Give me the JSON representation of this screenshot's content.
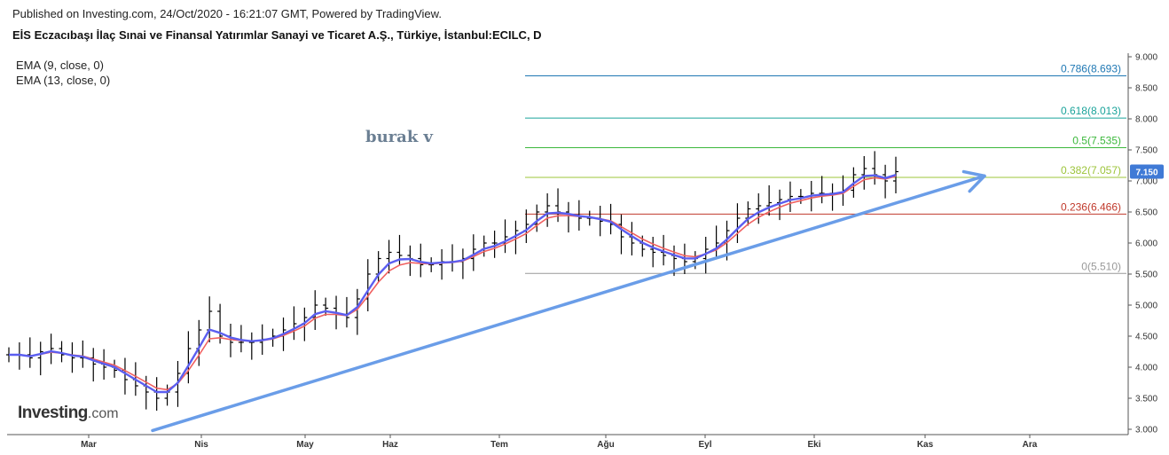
{
  "header": {
    "published": "Published on Investing.com, 24/Oct/2020 - 16:21:07 GMT, Powered by TradingView.",
    "title": "EİS Eczacıbaşı İlaç Sınai ve Finansal Yatırımlar Sanayi ve Ticaret A.Ş., Türkiye, İstanbul:ECILC, D"
  },
  "indicators": [
    "EMA (9, close, 0)",
    "EMA (13, close, 0)"
  ],
  "logo": {
    "bold": "Investing",
    "suffix": ".com"
  },
  "watermark": "burak v",
  "colors": {
    "ema9": "#5b5ef0",
    "ema13": "#f06060",
    "trendline": "#6a9de8",
    "price_bars": "#000000",
    "price_badge": "#3f7ad6"
  },
  "chart_data": {
    "type": "ohlc-bar",
    "y_ticks": [
      "9.000",
      "8.500",
      "8.000",
      "7.500",
      "7.000",
      "6.500",
      "6.000",
      "5.500",
      "5.000",
      "4.500",
      "4.000",
      "3.500",
      "3.000"
    ],
    "ylim": [
      3.0,
      9.0
    ],
    "x_ticks": [
      "Mar",
      "Nis",
      "May",
      "Haz",
      "Tem",
      "Ağu",
      "Eyl",
      "Eki",
      "Kas",
      "Ara"
    ],
    "last_price": "7.150",
    "fib_levels": [
      {
        "label": "0.786(8.693)",
        "value": 8.693,
        "color": "#1f78b4"
      },
      {
        "label": "0.618(8.013)",
        "value": 8.013,
        "color": "#1aa39a"
      },
      {
        "label": "0.5(7.535)",
        "value": 7.535,
        "color": "#3cb83c"
      },
      {
        "label": "0.382(7.057)",
        "value": 7.057,
        "color": "#9cc43a"
      },
      {
        "label": "0.236(6.466)",
        "value": 6.466,
        "color": "#c0392b"
      },
      {
        "label": "0(5.510)",
        "value": 5.51,
        "color": "#999999"
      }
    ],
    "trendline": {
      "from": [
        "Mar",
        3.0
      ],
      "to": [
        "Kas",
        7.1
      ]
    },
    "series": [
      {
        "name": "price",
        "approx_close": [
          4.2,
          4.2,
          4.15,
          4.25,
          4.3,
          4.2,
          4.15,
          4.15,
          4.05,
          4.0,
          3.95,
          3.8,
          3.7,
          3.6,
          3.5,
          3.6,
          3.9,
          4.3,
          4.6,
          4.9,
          4.5,
          4.4,
          4.4,
          4.4,
          4.45,
          4.5,
          4.6,
          4.7,
          4.8,
          5.0,
          4.95,
          4.85,
          4.8,
          5.1,
          5.5,
          5.75,
          5.85,
          5.8,
          5.75,
          5.65,
          5.65,
          5.7,
          5.7,
          5.75,
          5.9,
          6.0,
          6.0,
          6.1,
          6.2,
          6.3,
          6.5,
          6.6,
          6.5,
          6.45,
          6.4,
          6.4,
          6.35,
          6.3,
          6.1,
          6.0,
          5.9,
          5.85,
          5.8,
          5.75,
          5.7,
          5.75,
          5.9,
          6.0,
          6.2,
          6.4,
          6.55,
          6.6,
          6.65,
          6.7,
          6.75,
          6.75,
          6.8,
          6.8,
          6.8,
          6.85,
          7.1,
          7.2,
          7.1,
          7.0,
          7.15
        ]
      }
    ]
  }
}
